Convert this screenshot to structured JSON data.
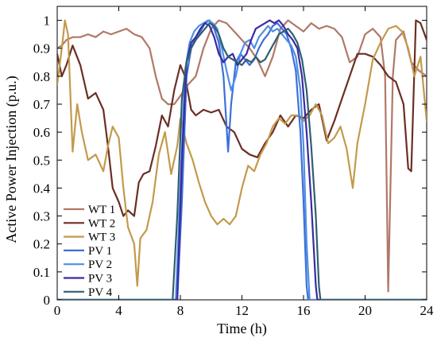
{
  "chart_data": {
    "type": "line",
    "title": "",
    "xlabel": "Time (h)",
    "ylabel": "Active Power Injection (p.u.)",
    "xlim": [
      0,
      24
    ],
    "ylim": [
      0,
      1.05
    ],
    "xticks": [
      0,
      4,
      8,
      12,
      16,
      20,
      24
    ],
    "yticks": [
      0,
      0.1,
      0.2,
      0.3,
      0.4,
      0.5,
      0.6,
      0.7,
      0.8,
      0.9,
      1
    ],
    "grid": false,
    "legend": "bottom-left",
    "series": [
      {
        "name": "WT 1",
        "color": "#b07868",
        "points": [
          [
            0,
            0.9
          ],
          [
            0.3,
            0.91
          ],
          [
            0.6,
            0.93
          ],
          [
            1,
            0.94
          ],
          [
            1.5,
            0.94
          ],
          [
            2,
            0.95
          ],
          [
            2.5,
            0.94
          ],
          [
            3,
            0.96
          ],
          [
            3.5,
            0.95
          ],
          [
            4,
            0.96
          ],
          [
            4.5,
            0.97
          ],
          [
            5,
            0.95
          ],
          [
            5.5,
            0.94
          ],
          [
            6,
            0.9
          ],
          [
            6.4,
            0.8
          ],
          [
            6.8,
            0.72
          ],
          [
            7.2,
            0.7
          ],
          [
            7.6,
            0.7
          ],
          [
            8,
            0.73
          ],
          [
            8.5,
            0.77
          ],
          [
            9,
            0.8
          ],
          [
            9.5,
            0.9
          ],
          [
            10,
            0.97
          ],
          [
            10.5,
            1.0
          ],
          [
            11,
            0.99
          ],
          [
            11.5,
            0.96
          ],
          [
            12,
            0.93
          ],
          [
            12.5,
            0.9
          ],
          [
            13,
            0.86
          ],
          [
            13.5,
            0.8
          ],
          [
            14,
            0.87
          ],
          [
            14.5,
            0.97
          ],
          [
            15,
            1.0
          ],
          [
            15.5,
            0.98
          ],
          [
            16,
            0.96
          ],
          [
            16.5,
            0.99
          ],
          [
            17,
            0.97
          ],
          [
            17.5,
            0.98
          ],
          [
            18,
            0.97
          ],
          [
            18.5,
            0.94
          ],
          [
            19,
            0.85
          ],
          [
            19.5,
            0.87
          ],
          [
            20,
            0.95
          ],
          [
            20.5,
            0.97
          ],
          [
            21,
            0.94
          ],
          [
            21.3,
            0.8
          ],
          [
            21.5,
            0.03
          ],
          [
            21.8,
            0.8
          ],
          [
            22,
            0.93
          ],
          [
            22.5,
            0.96
          ],
          [
            23,
            0.85
          ],
          [
            23.5,
            0.82
          ],
          [
            24,
            0.8
          ]
        ]
      },
      {
        "name": "WT 2",
        "color": "#6b2e24",
        "points": [
          [
            0,
            0.88
          ],
          [
            0.3,
            0.8
          ],
          [
            0.6,
            0.84
          ],
          [
            1,
            0.91
          ],
          [
            1.5,
            0.84
          ],
          [
            2,
            0.72
          ],
          [
            2.5,
            0.74
          ],
          [
            3,
            0.68
          ],
          [
            3.3,
            0.55
          ],
          [
            3.6,
            0.4
          ],
          [
            4,
            0.35
          ],
          [
            4.3,
            0.3
          ],
          [
            4.6,
            0.32
          ],
          [
            5,
            0.3
          ],
          [
            5.3,
            0.42
          ],
          [
            5.6,
            0.45
          ],
          [
            6,
            0.46
          ],
          [
            6.4,
            0.55
          ],
          [
            6.8,
            0.66
          ],
          [
            7.2,
            0.62
          ],
          [
            7.6,
            0.75
          ],
          [
            8,
            0.84
          ],
          [
            8.3,
            0.8
          ],
          [
            8.7,
            0.68
          ],
          [
            9,
            0.66
          ],
          [
            9.5,
            0.68
          ],
          [
            10,
            0.67
          ],
          [
            10.5,
            0.68
          ],
          [
            11,
            0.62
          ],
          [
            11.5,
            0.6
          ],
          [
            12,
            0.54
          ],
          [
            12.5,
            0.52
          ],
          [
            13,
            0.51
          ],
          [
            13.5,
            0.56
          ],
          [
            14,
            0.6
          ],
          [
            14.5,
            0.66
          ],
          [
            15,
            0.62
          ],
          [
            15.5,
            0.66
          ],
          [
            16,
            0.65
          ],
          [
            16.5,
            0.68
          ],
          [
            17,
            0.7
          ],
          [
            17.5,
            0.57
          ],
          [
            18,
            0.64
          ],
          [
            18.5,
            0.72
          ],
          [
            19,
            0.8
          ],
          [
            19.5,
            0.88
          ],
          [
            20,
            0.88
          ],
          [
            20.5,
            0.87
          ],
          [
            21,
            0.84
          ],
          [
            21.5,
            0.8
          ],
          [
            22,
            0.78
          ],
          [
            22.5,
            0.7
          ],
          [
            22.8,
            0.47
          ],
          [
            23,
            0.46
          ],
          [
            23.3,
            1.0
          ],
          [
            23.6,
            0.99
          ],
          [
            24,
            0.93
          ]
        ]
      },
      {
        "name": "WT 3",
        "color": "#c39a4c",
        "points": [
          [
            0,
            0.77
          ],
          [
            0.3,
            0.9
          ],
          [
            0.5,
            1.0
          ],
          [
            0.7,
            0.95
          ],
          [
            1,
            0.53
          ],
          [
            1.3,
            0.7
          ],
          [
            1.6,
            0.6
          ],
          [
            2,
            0.5
          ],
          [
            2.5,
            0.52
          ],
          [
            3,
            0.46
          ],
          [
            3.3,
            0.55
          ],
          [
            3.6,
            0.62
          ],
          [
            4,
            0.58
          ],
          [
            4.3,
            0.4
          ],
          [
            4.6,
            0.26
          ],
          [
            5,
            0.2
          ],
          [
            5.2,
            0.05
          ],
          [
            5.4,
            0.22
          ],
          [
            5.8,
            0.25
          ],
          [
            6.2,
            0.35
          ],
          [
            6.6,
            0.52
          ],
          [
            7,
            0.6
          ],
          [
            7.4,
            0.45
          ],
          [
            7.8,
            0.55
          ],
          [
            8,
            0.65
          ],
          [
            8.4,
            0.56
          ],
          [
            8.8,
            0.5
          ],
          [
            9.2,
            0.42
          ],
          [
            9.6,
            0.35
          ],
          [
            10,
            0.3
          ],
          [
            10.4,
            0.27
          ],
          [
            10.8,
            0.29
          ],
          [
            11.2,
            0.27
          ],
          [
            11.6,
            0.3
          ],
          [
            12,
            0.4
          ],
          [
            12.4,
            0.48
          ],
          [
            12.8,
            0.46
          ],
          [
            13.2,
            0.52
          ],
          [
            13.6,
            0.56
          ],
          [
            14,
            0.62
          ],
          [
            14.4,
            0.65
          ],
          [
            14.8,
            0.63
          ],
          [
            15.2,
            0.66
          ],
          [
            15.6,
            0.66
          ],
          [
            16,
            0.64
          ],
          [
            16.4,
            0.66
          ],
          [
            16.8,
            0.7
          ],
          [
            17.2,
            0.66
          ],
          [
            17.6,
            0.56
          ],
          [
            18,
            0.58
          ],
          [
            18.4,
            0.62
          ],
          [
            18.8,
            0.54
          ],
          [
            19.2,
            0.4
          ],
          [
            19.5,
            0.56
          ],
          [
            20,
            0.7
          ],
          [
            20.5,
            0.86
          ],
          [
            21,
            0.92
          ],
          [
            21.5,
            0.97
          ],
          [
            22,
            0.98
          ],
          [
            22.4,
            0.96
          ],
          [
            22.8,
            0.9
          ],
          [
            23.2,
            0.8
          ],
          [
            23.6,
            0.87
          ],
          [
            24,
            0.64
          ]
        ]
      },
      {
        "name": "PV 1",
        "color": "#3e6fd8",
        "points": [
          [
            0,
            0
          ],
          [
            7.8,
            0
          ],
          [
            8.1,
            0.35
          ],
          [
            8.4,
            0.8
          ],
          [
            8.7,
            0.9
          ],
          [
            9,
            0.94
          ],
          [
            9.3,
            0.96
          ],
          [
            9.6,
            0.99
          ],
          [
            9.9,
            1.0
          ],
          [
            10.2,
            0.97
          ],
          [
            10.5,
            0.92
          ],
          [
            10.8,
            0.8
          ],
          [
            11.1,
            0.53
          ],
          [
            11.3,
            0.7
          ],
          [
            11.6,
            0.85
          ],
          [
            11.9,
            0.88
          ],
          [
            12.2,
            0.86
          ],
          [
            12.5,
            0.84
          ],
          [
            12.8,
            0.86
          ],
          [
            13.1,
            0.9
          ],
          [
            13.4,
            0.93
          ],
          [
            13.7,
            0.95
          ],
          [
            14,
            0.98
          ],
          [
            14.3,
            0.99
          ],
          [
            14.6,
            0.97
          ],
          [
            14.9,
            0.95
          ],
          [
            15.2,
            0.9
          ],
          [
            15.5,
            0.82
          ],
          [
            15.8,
            0.6
          ],
          [
            16,
            0.35
          ],
          [
            16.2,
            0.05
          ],
          [
            16.3,
            0
          ],
          [
            24,
            0
          ]
        ]
      },
      {
        "name": "PV 2",
        "color": "#4f8ee6",
        "points": [
          [
            0,
            0
          ],
          [
            7.7,
            0
          ],
          [
            8,
            0.4
          ],
          [
            8.3,
            0.82
          ],
          [
            8.6,
            0.92
          ],
          [
            8.9,
            0.96
          ],
          [
            9.2,
            0.98
          ],
          [
            9.5,
            0.99
          ],
          [
            9.8,
            1.0
          ],
          [
            10.1,
            0.99
          ],
          [
            10.4,
            0.97
          ],
          [
            10.7,
            0.9
          ],
          [
            11,
            0.82
          ],
          [
            11.3,
            0.75
          ],
          [
            11.6,
            0.8
          ],
          [
            11.9,
            0.88
          ],
          [
            12.2,
            0.92
          ],
          [
            12.5,
            0.93
          ],
          [
            12.8,
            0.9
          ],
          [
            13.1,
            0.94
          ],
          [
            13.4,
            0.96
          ],
          [
            13.7,
            0.98
          ],
          [
            14,
            0.96
          ],
          [
            14.3,
            0.97
          ],
          [
            14.6,
            0.95
          ],
          [
            14.9,
            0.93
          ],
          [
            15.2,
            0.91
          ],
          [
            15.5,
            0.87
          ],
          [
            15.8,
            0.75
          ],
          [
            16,
            0.55
          ],
          [
            16.2,
            0.2
          ],
          [
            16.4,
            0
          ],
          [
            24,
            0
          ]
        ]
      },
      {
        "name": "PV 3",
        "color": "#3a2aa0",
        "points": [
          [
            0,
            0
          ],
          [
            7.8,
            0
          ],
          [
            8.1,
            0.5
          ],
          [
            8.4,
            0.85
          ],
          [
            8.7,
            0.92
          ],
          [
            9,
            0.94
          ],
          [
            9.3,
            0.97
          ],
          [
            9.6,
            0.99
          ],
          [
            9.9,
            0.98
          ],
          [
            10.2,
            0.94
          ],
          [
            10.5,
            0.88
          ],
          [
            10.8,
            0.85
          ],
          [
            11.1,
            0.87
          ],
          [
            11.4,
            0.88
          ],
          [
            11.7,
            0.84
          ],
          [
            12,
            0.86
          ],
          [
            12.3,
            0.88
          ],
          [
            12.6,
            0.93
          ],
          [
            12.9,
            0.97
          ],
          [
            13.2,
            0.98
          ],
          [
            13.5,
            0.99
          ],
          [
            13.8,
            1.0
          ],
          [
            14.1,
            0.99
          ],
          [
            14.4,
            1.0
          ],
          [
            14.7,
            0.98
          ],
          [
            15,
            0.95
          ],
          [
            15.3,
            0.93
          ],
          [
            15.6,
            0.9
          ],
          [
            15.9,
            0.8
          ],
          [
            16.2,
            0.6
          ],
          [
            16.5,
            0.35
          ],
          [
            16.8,
            0.05
          ],
          [
            16.9,
            0
          ],
          [
            24,
            0
          ]
        ]
      },
      {
        "name": "PV 4",
        "color": "#2f5f70",
        "points": [
          [
            0,
            0
          ],
          [
            7.5,
            0
          ],
          [
            7.8,
            0.3
          ],
          [
            8.1,
            0.72
          ],
          [
            8.4,
            0.85
          ],
          [
            8.7,
            0.9
          ],
          [
            9,
            0.93
          ],
          [
            9.3,
            0.95
          ],
          [
            9.6,
            0.97
          ],
          [
            9.9,
            0.99
          ],
          [
            10.2,
            0.98
          ],
          [
            10.5,
            0.95
          ],
          [
            10.8,
            0.9
          ],
          [
            11.1,
            0.87
          ],
          [
            11.4,
            0.86
          ],
          [
            11.7,
            0.85
          ],
          [
            12,
            0.84
          ],
          [
            12.3,
            0.86
          ],
          [
            12.6,
            0.85
          ],
          [
            12.9,
            0.87
          ],
          [
            13.2,
            0.85
          ],
          [
            13.5,
            0.86
          ],
          [
            13.8,
            0.89
          ],
          [
            14.1,
            0.92
          ],
          [
            14.4,
            0.95
          ],
          [
            14.7,
            0.96
          ],
          [
            15,
            0.97
          ],
          [
            15.3,
            0.95
          ],
          [
            15.6,
            0.92
          ],
          [
            15.9,
            0.86
          ],
          [
            16.2,
            0.75
          ],
          [
            16.5,
            0.55
          ],
          [
            16.8,
            0.3
          ],
          [
            17,
            0.05
          ],
          [
            17.1,
            0
          ],
          [
            24,
            0
          ]
        ]
      }
    ]
  }
}
